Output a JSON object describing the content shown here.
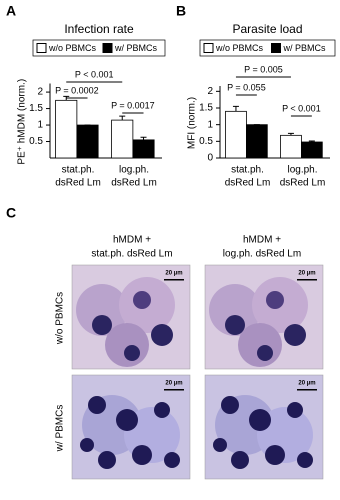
{
  "chart_data": [
    {
      "type": "bar",
      "panel": "A",
      "title": "Infection rate",
      "y_label": "PE⁺ hMDM (norm.)",
      "categories": [
        [
          "stat.ph.",
          "dsRed Lm"
        ],
        [
          "log.ph.",
          "dsRed Lm"
        ]
      ],
      "series": [
        {
          "name": "w/o PBMCs",
          "color": "#ffffff",
          "values": [
            1.75,
            1.15
          ],
          "errors": [
            0.12,
            0.12
          ]
        },
        {
          "name": "w/ PBMCs",
          "color": "#000000",
          "values": [
            1.0,
            0.55
          ],
          "errors": [
            0,
            0.08
          ]
        }
      ],
      "ylim": [
        0,
        2.2
      ],
      "yticks": [
        0.5,
        1,
        1.5,
        2
      ],
      "annotations": [
        "P < 0.001",
        "P = 0.0002",
        "P = 0.0017"
      ]
    },
    {
      "type": "bar",
      "panel": "B",
      "title": "Parasite load",
      "y_label": "MFI (norm.)",
      "categories": [
        [
          "stat.ph.",
          "dsRed Lm"
        ],
        [
          "log.ph.",
          "dsRed Lm"
        ]
      ],
      "series": [
        {
          "name": "w/o PBMCs",
          "color": "#ffffff",
          "values": [
            1.4,
            0.68
          ],
          "errors": [
            0.15,
            0.06
          ]
        },
        {
          "name": "w/ PBMCs",
          "color": "#000000",
          "values": [
            1.0,
            0.48
          ],
          "errors": [
            0,
            0.03
          ]
        }
      ],
      "ylim": [
        0,
        2.1
      ],
      "yticks": [
        0,
        0.5,
        1,
        1.5,
        2
      ],
      "annotations": [
        "P = 0.005",
        "P = 0.055",
        "P < 0.001"
      ]
    }
  ],
  "micrographs": {
    "panel": "C",
    "columns": [
      [
        "hMDM +",
        "stat.ph. dsRed Lm"
      ],
      [
        "hMDM +",
        "log.ph. dsRed Lm"
      ]
    ],
    "rows": [
      "w/o PBMCs",
      "w/ PBMCs"
    ],
    "scale_bar": "20 µm"
  }
}
